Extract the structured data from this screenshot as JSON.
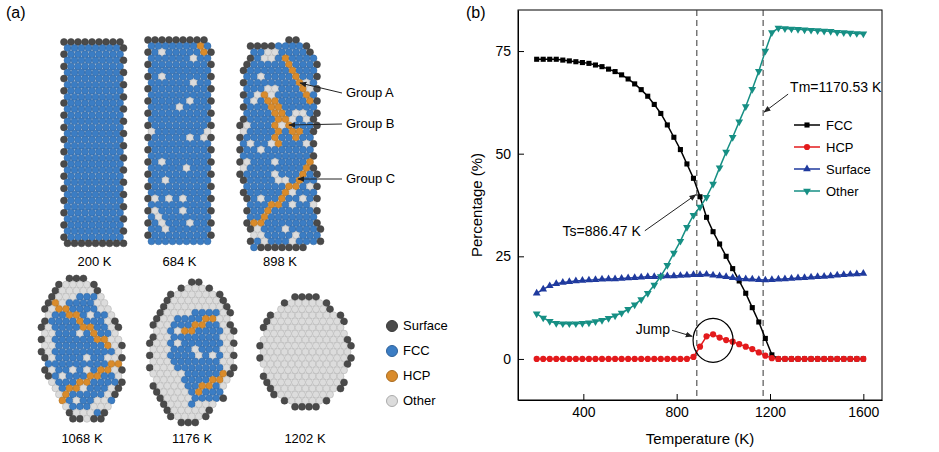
{
  "panel_labels": [
    "(a)",
    "(b)"
  ],
  "snapshots": {
    "labels": [
      "200 K",
      "684 K",
      "898 K",
      "1068 K",
      "1176 K",
      "1202 K"
    ],
    "groups": [
      "Group A",
      "Group B",
      "Group C"
    ],
    "legend": [
      {
        "name": "Surface",
        "color": "#4a4a4a"
      },
      {
        "name": "FCC",
        "color": "#3b7dc4"
      },
      {
        "name": "HCP",
        "color": "#d98b2b"
      },
      {
        "name": "Other",
        "color": "#dcdcdc"
      }
    ]
  },
  "chart_data": {
    "type": "line",
    "x_label": "Temperature (K)",
    "y_label": "Percentage (%)",
    "x": [
      200,
      228,
      256,
      284,
      312,
      340,
      368,
      396,
      424,
      452,
      480,
      508,
      536,
      564,
      592,
      620,
      648,
      676,
      704,
      732,
      760,
      788,
      816,
      844,
      872,
      900,
      928,
      956,
      984,
      1012,
      1040,
      1068,
      1096,
      1124,
      1152,
      1180,
      1208,
      1236,
      1264,
      1292,
      1320,
      1348,
      1376,
      1404,
      1432,
      1460,
      1488,
      1516,
      1544,
      1572,
      1600
    ],
    "series": [
      {
        "name": "FCC",
        "color": "#000000",
        "marker": "square",
        "values": [
          73,
          73,
          73,
          73,
          72.8,
          72.6,
          72.4,
          72.2,
          72,
          71.6,
          71.2,
          70.6,
          70,
          69.2,
          68.2,
          67,
          65.6,
          64,
          62,
          59.8,
          57,
          54,
          51,
          47.5,
          44,
          39.5,
          34.5,
          31,
          28,
          25,
          22,
          19,
          16,
          12.5,
          9,
          5,
          1,
          0,
          0,
          0,
          0,
          0,
          0,
          0,
          0,
          0,
          0,
          0,
          0,
          0,
          0
        ]
      },
      {
        "name": "HCP",
        "color": "#e31a1c",
        "marker": "circle",
        "values": [
          0,
          0,
          0,
          0,
          0,
          0,
          0,
          0,
          0,
          0,
          0,
          0,
          0,
          0,
          0,
          0,
          0,
          0,
          0,
          0,
          0,
          0,
          0,
          0,
          0.5,
          3,
          5.5,
          6,
          5.2,
          4.6,
          4.2,
          3.6,
          3,
          2.4,
          1.6,
          0.8,
          0.2,
          0,
          0,
          0,
          0,
          0,
          0,
          0,
          0,
          0,
          0,
          0,
          0,
          0,
          0
        ]
      },
      {
        "name": "Surface",
        "color": "#1f3a9e",
        "marker": "triangle-up",
        "values": [
          16,
          17,
          17.8,
          18.3,
          18.6,
          18.8,
          19,
          19.1,
          19.2,
          19.3,
          19.4,
          19.5,
          19.5,
          19.6,
          19.7,
          19.8,
          19.9,
          20,
          20,
          20.1,
          20.2,
          20.2,
          20.3,
          20.4,
          20.5,
          20.5,
          20.6,
          20.4,
          20.2,
          20,
          19.8,
          19.6,
          19.5,
          19.4,
          19.3,
          19.2,
          19.3,
          19.4,
          19.5,
          19.6,
          19.7,
          19.8,
          19.9,
          20,
          20.1,
          20.2,
          20.4,
          20.5,
          20.6,
          20.7,
          20.8
        ]
      },
      {
        "name": "Other",
        "color": "#168f84",
        "marker": "triangle-down",
        "values": [
          11,
          10,
          9.2,
          8.7,
          8.6,
          8.6,
          8.6,
          8.7,
          8.8,
          9.1,
          9.4,
          9.9,
          10.5,
          11.2,
          12.1,
          13.2,
          14.5,
          16,
          18,
          20.1,
          22.8,
          25.8,
          28.7,
          32.1,
          35,
          37,
          39.4,
          42.6,
          46.6,
          50.4,
          54,
          57.8,
          61.5,
          65.7,
          70.1,
          75,
          79.5,
          80.6,
          80.5,
          80.4,
          80.3,
          80.2,
          80.1,
          80,
          79.9,
          79.8,
          79.6,
          79.5,
          79.4,
          79.3,
          79.2
        ]
      }
    ],
    "xlim": [
      120,
      1680
    ],
    "ylim": [
      -10,
      85
    ],
    "xticks": [
      400,
      800,
      1200,
      1600
    ],
    "yticks": [
      0,
      25,
      50,
      75
    ],
    "grid": false,
    "legend": "upper right",
    "annotations": [
      {
        "text": "Ts=886.47 K",
        "x": 886.47
      },
      {
        "text": "Tm=1170.53 K",
        "x": 1170.53
      },
      {
        "text": "Jump",
        "x": 956,
        "y": 6
      }
    ]
  }
}
